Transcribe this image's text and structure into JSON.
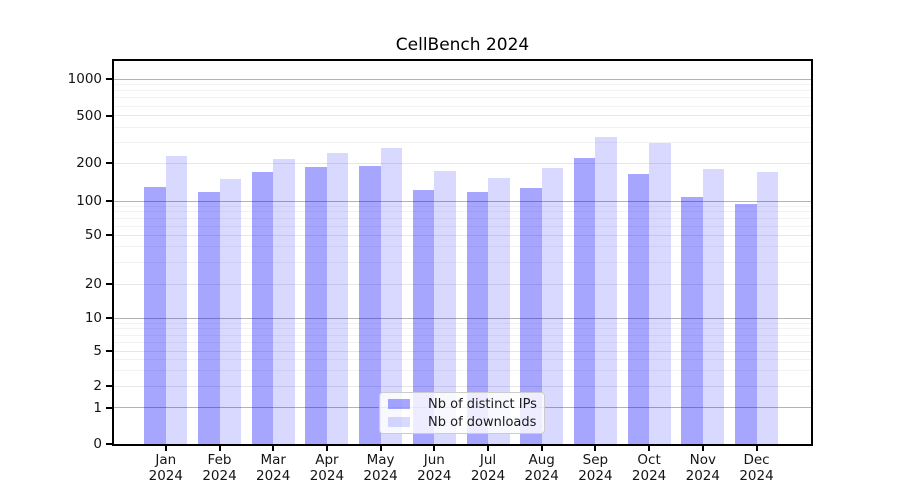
{
  "figure": {
    "background": "#ffffff"
  },
  "chart_data": {
    "type": "bar",
    "title": "CellBench 2024",
    "categories": [
      "Jan 2024",
      "Feb 2024",
      "Mar 2024",
      "Apr 2024",
      "May 2024",
      "Jun 2024",
      "Jul 2024",
      "Aug 2024",
      "Sep 2024",
      "Oct 2024",
      "Nov 2024",
      "Dec 2024"
    ],
    "series": [
      {
        "name": "Nb of distinct IPs",
        "color": "rgba(0,0,255,0.35)",
        "values": [
          130,
          118,
          170,
          187,
          192,
          122,
          119,
          127,
          220,
          165,
          108,
          95
        ]
      },
      {
        "name": "Nb of downloads",
        "color": "rgba(0,0,255,0.15)",
        "values": [
          230,
          149,
          216,
          243,
          271,
          174,
          152,
          183,
          330,
          294,
          180,
          172
        ]
      }
    ],
    "yscale": "symlog",
    "y_tick_labels": [
      0,
      1,
      2,
      5,
      10,
      20,
      50,
      100,
      200,
      500,
      1000
    ],
    "ylim": [
      0,
      1450
    ],
    "xlabel": "",
    "ylabel": "",
    "grid": "horizontal log gridlines, minors visible",
    "legend_position": "lower center",
    "colors": {
      "major_gridline": "#b3b3b3",
      "labeled_gridline": "#e7e7ea",
      "minor_gridline": "#f2f2f4",
      "spine": "#000000",
      "text": "#151515"
    }
  }
}
